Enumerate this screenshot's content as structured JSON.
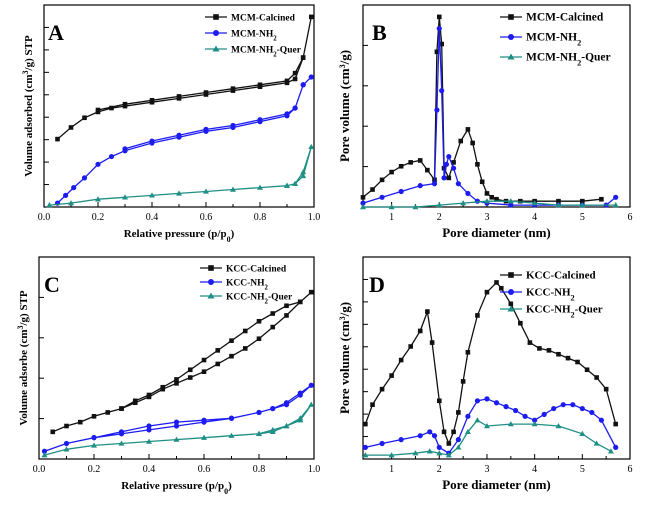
{
  "colors": {
    "calcined": "#111111",
    "nh2": "#1c1cf0",
    "quer": "#1f8f86"
  },
  "chart_data": [
    {
      "type": "line",
      "panel_letter": "A",
      "title": "",
      "xlabel": "Relative pressure (p/p",
      "xlabel_sub": "0",
      "xlabel_end": ")",
      "ylabel_pre": "Volume adsorbed (cm",
      "ylabel_sup": "3",
      "ylabel_post": "/g) STP",
      "xlim": [
        0,
        1.0
      ],
      "ylim": [
        0,
        100
      ],
      "xticks": [
        0.0,
        0.2,
        0.4,
        0.6,
        0.8,
        1.0
      ],
      "xtick_labels": [
        "0.0",
        "0.2",
        "0.4",
        "0.6",
        "0.8",
        "1.0"
      ],
      "legend_position": "top-right",
      "series": [
        {
          "name": "MCM-Calcined",
          "key": "calcined",
          "marker": "square",
          "x": [
            0.05,
            0.1,
            0.15,
            0.2,
            0.25,
            0.3,
            0.4,
            0.5,
            0.6,
            0.7,
            0.8,
            0.9,
            0.93,
            0.96,
            0.99,
            0.96,
            0.93,
            0.9,
            0.8,
            0.7,
            0.6,
            0.5,
            0.4,
            0.3,
            0.2
          ],
          "y": [
            35,
            41,
            46,
            49,
            51,
            52,
            54,
            56,
            58,
            60,
            62,
            64,
            66,
            77,
            98,
            77,
            69,
            65,
            63,
            61,
            59,
            57,
            55,
            53,
            50
          ]
        },
        {
          "name": "MCM-NH",
          "name_sub": "2",
          "key": "nh2",
          "marker": "circle",
          "x": [
            0.05,
            0.08,
            0.11,
            0.15,
            0.2,
            0.25,
            0.3,
            0.4,
            0.5,
            0.6,
            0.7,
            0.8,
            0.9,
            0.93,
            0.96,
            0.99,
            0.96,
            0.93,
            0.9,
            0.8,
            0.7,
            0.6,
            0.5,
            0.4,
            0.3
          ],
          "y": [
            2,
            6,
            10,
            15,
            22,
            26,
            29,
            33,
            36,
            39,
            41,
            44,
            47,
            51,
            63,
            67,
            63,
            51,
            48,
            45,
            42,
            40,
            37,
            34,
            30
          ]
        },
        {
          "name": "MCM-NH",
          "name_sub": "2",
          "name_end": "-Quer",
          "key": "quer",
          "marker": "triangle",
          "x": [
            0.02,
            0.1,
            0.2,
            0.3,
            0.4,
            0.5,
            0.6,
            0.7,
            0.8,
            0.9,
            0.93,
            0.96,
            0.99,
            0.96,
            0.93,
            0.9
          ],
          "y": [
            1,
            2,
            4,
            5,
            6,
            7,
            8,
            9,
            10,
            11,
            12,
            18,
            31,
            16,
            12,
            11
          ]
        }
      ]
    },
    {
      "type": "line",
      "panel_letter": "B",
      "title": "",
      "xlabel": "Pore diameter (nm)",
      "ylabel_pre": "Pore volume (cm",
      "ylabel_sup": "3",
      "ylabel_post": "/g)",
      "xlim": [
        0.4,
        6
      ],
      "ylim": [
        0,
        100
      ],
      "xticks": [
        1,
        2,
        3,
        4,
        5,
        6
      ],
      "xtick_labels": [
        "1",
        "2",
        "3",
        "4",
        "5",
        "6"
      ],
      "legend_position": "top-right",
      "series": [
        {
          "name": "MCM-Calcined",
          "key": "calcined",
          "marker": "square",
          "x": [
            0.4,
            0.6,
            0.8,
            1.0,
            1.2,
            1.4,
            1.6,
            1.75,
            1.9,
            1.95,
            2.0,
            2.05,
            2.1,
            2.2,
            2.3,
            2.45,
            2.6,
            2.7,
            2.8,
            2.9,
            3.0,
            3.1,
            3.2,
            3.4,
            3.7,
            4.0,
            4.5,
            5.0,
            5.4
          ],
          "y": [
            5,
            9,
            14,
            18,
            21,
            23,
            24,
            19,
            14,
            80,
            98,
            84,
            20,
            15,
            23,
            34,
            40,
            33,
            22,
            13,
            7,
            5,
            4,
            3,
            3,
            3,
            3,
            3,
            4
          ]
        },
        {
          "name": "MCM-NH",
          "name_sub": "2",
          "key": "nh2",
          "marker": "circle",
          "x": [
            0.4,
            0.8,
            1.2,
            1.6,
            1.9,
            1.95,
            2.0,
            2.05,
            2.1,
            2.15,
            2.2,
            2.3,
            2.4,
            2.6,
            2.8,
            3.0,
            3.5,
            4.0,
            4.5,
            5.0,
            5.5,
            5.7
          ],
          "y": [
            2,
            5,
            8,
            11,
            12,
            50,
            92,
            60,
            15,
            22,
            26,
            20,
            12,
            7,
            3,
            2,
            1,
            1,
            1,
            1,
            1,
            5
          ]
        },
        {
          "name": "MCM-NH",
          "name_sub": "2",
          "name_end": "-Quer",
          "key": "quer",
          "marker": "triangle",
          "x": [
            0.4,
            1.0,
            1.5,
            2.0,
            2.5,
            3.0,
            3.5,
            4.0,
            4.5,
            5.0,
            5.7
          ],
          "y": [
            0,
            0,
            0,
            1,
            2,
            3,
            3,
            2,
            1,
            1,
            1
          ]
        }
      ]
    },
    {
      "type": "line",
      "panel_letter": "C",
      "title": "",
      "xlabel": "Relative pressure (p/p",
      "xlabel_sub": "0",
      "xlabel_end": ")",
      "ylabel_pre": "Volume adsorbe (cm",
      "ylabel_sup": "3",
      "ylabel_post": "/g) STP",
      "xlim": [
        0,
        1.0
      ],
      "ylim": [
        0,
        100
      ],
      "xticks": [
        0.0,
        0.2,
        0.4,
        0.6,
        0.8,
        1.0
      ],
      "xtick_labels": [
        "0.0",
        "0.2",
        "0.4",
        "0.6",
        "0.8",
        "1.0"
      ],
      "legend_position": "top-left",
      "series": [
        {
          "name": "KCC-Calcined",
          "key": "calcined",
          "marker": "square",
          "x": [
            0.05,
            0.1,
            0.15,
            0.2,
            0.25,
            0.3,
            0.35,
            0.4,
            0.45,
            0.5,
            0.55,
            0.6,
            0.65,
            0.7,
            0.75,
            0.8,
            0.85,
            0.9,
            0.95,
            0.99,
            0.95,
            0.9,
            0.85,
            0.8,
            0.75,
            0.7,
            0.65,
            0.6,
            0.55,
            0.5,
            0.45,
            0.4,
            0.35,
            0.3
          ],
          "y": [
            14,
            17,
            19,
            22,
            24,
            26,
            29,
            32,
            36,
            39,
            42,
            45,
            49,
            53,
            57,
            62,
            68,
            74,
            81,
            86,
            81,
            79,
            75,
            71,
            66,
            61,
            56,
            51,
            46,
            41,
            37,
            33,
            30,
            26
          ]
        },
        {
          "name": "KCC-NH",
          "name_sub": "2",
          "key": "nh2",
          "marker": "circle",
          "x": [
            0.02,
            0.1,
            0.2,
            0.3,
            0.4,
            0.5,
            0.6,
            0.7,
            0.8,
            0.85,
            0.9,
            0.95,
            0.99,
            0.95,
            0.9,
            0.85,
            0.8,
            0.7,
            0.6,
            0.5,
            0.4,
            0.3,
            0.2
          ],
          "y": [
            4,
            8,
            11,
            13,
            15,
            17,
            19,
            21,
            24,
            26,
            29,
            34,
            38,
            33,
            28,
            26,
            24,
            21,
            20,
            19,
            17,
            14,
            11
          ]
        },
        {
          "name": "KCC-NH",
          "name_sub": "2",
          "name_end": "-Quer",
          "key": "quer",
          "marker": "triangle",
          "x": [
            0.02,
            0.1,
            0.2,
            0.3,
            0.4,
            0.5,
            0.6,
            0.7,
            0.8,
            0.85,
            0.9,
            0.95,
            0.99,
            0.95,
            0.9,
            0.85,
            0.8
          ],
          "y": [
            2,
            5,
            7,
            8,
            9,
            10,
            11,
            12,
            13,
            15,
            17,
            21,
            28,
            20,
            17,
            14,
            13
          ]
        }
      ]
    },
    {
      "type": "line",
      "panel_letter": "D",
      "title": "",
      "xlabel": "Pore diameter (nm)",
      "ylabel_pre": "Pore volume (cm",
      "ylabel_sup": "3",
      "ylabel_post": "/g)",
      "xlim": [
        0.4,
        6
      ],
      "ylim": [
        0,
        100
      ],
      "xticks": [
        1,
        2,
        3,
        4,
        5,
        6
      ],
      "xtick_labels": [
        "1",
        "2",
        "3",
        "4",
        "5",
        "6"
      ],
      "legend_position": "top-right",
      "series": [
        {
          "name": "KCC-Calcined",
          "key": "calcined",
          "marker": "square",
          "x": [
            0.45,
            0.6,
            0.8,
            1.0,
            1.2,
            1.4,
            1.6,
            1.75,
            1.85,
            2.0,
            2.1,
            2.2,
            2.3,
            2.4,
            2.5,
            2.6,
            2.8,
            3.0,
            3.2,
            3.3,
            3.5,
            3.7,
            3.9,
            4.1,
            4.3,
            4.5,
            4.7,
            4.9,
            5.1,
            5.3,
            5.5,
            5.7
          ],
          "y": [
            18,
            28,
            36,
            43,
            51,
            58,
            66,
            76,
            60,
            30,
            14,
            8,
            14,
            24,
            40,
            55,
            74,
            86,
            91,
            88,
            80,
            70,
            60,
            57,
            56,
            54,
            52,
            50,
            46,
            42,
            36,
            18
          ]
        },
        {
          "name": "KCC-NH",
          "name_sub": "2",
          "key": "nh2",
          "marker": "circle",
          "x": [
            0.45,
            0.8,
            1.2,
            1.6,
            1.8,
            1.9,
            2.0,
            2.2,
            2.4,
            2.6,
            2.8,
            3.0,
            3.2,
            3.4,
            3.6,
            3.8,
            4.0,
            4.2,
            4.4,
            4.6,
            4.8,
            5.0,
            5.2,
            5.4,
            5.7
          ],
          "y": [
            6,
            8,
            10,
            12,
            14,
            12,
            6,
            3,
            10,
            22,
            30,
            31,
            29,
            27,
            25,
            22,
            20,
            23,
            26,
            28,
            28,
            26,
            24,
            20,
            6
          ]
        },
        {
          "name": "KCC-NH",
          "name_sub": "2",
          "name_end": "-Quer",
          "key": "quer",
          "marker": "triangle",
          "x": [
            0.45,
            1.0,
            1.5,
            1.8,
            2.0,
            2.2,
            2.4,
            2.6,
            2.8,
            3.0,
            3.5,
            4.0,
            4.5,
            5.0,
            5.3,
            5.6
          ],
          "y": [
            2,
            2,
            3,
            4,
            3,
            2,
            6,
            14,
            20,
            17,
            18,
            18,
            17,
            13,
            8,
            4
          ]
        }
      ]
    }
  ]
}
